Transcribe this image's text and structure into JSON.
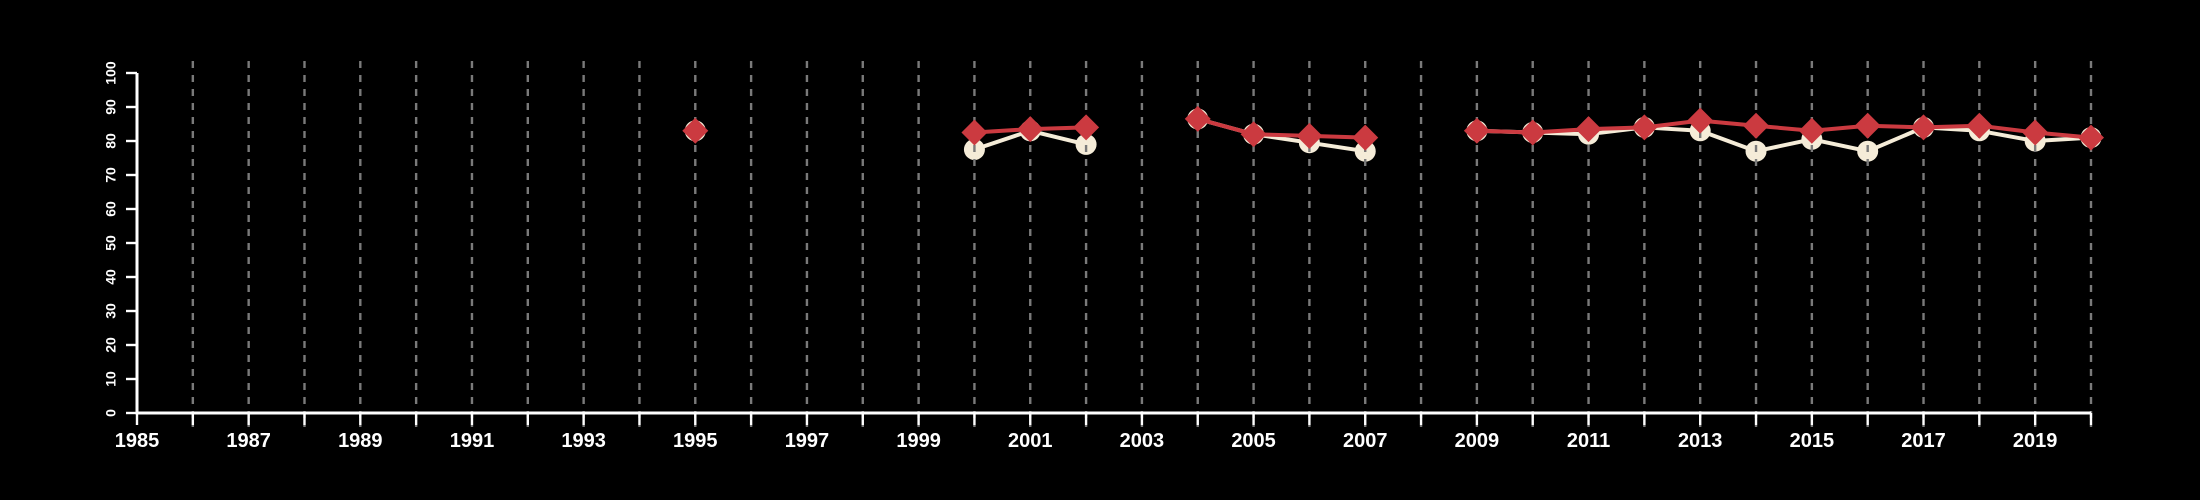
{
  "page": {
    "background_color": "#000000"
  },
  "chart_data": {
    "type": "line",
    "title": "",
    "xlabel": "",
    "ylabel": "",
    "xlim": [
      1985,
      2020
    ],
    "ylim": [
      0,
      100
    ],
    "grid": "vertical-dashed",
    "legend": null,
    "background_color": "#000000",
    "axis_color": "#ffffff",
    "gridline_color": "#7a7a7a",
    "y_ticks": [
      0,
      10,
      20,
      30,
      40,
      50,
      60,
      70,
      80,
      90,
      100
    ],
    "y_tick_labels": [
      "0",
      "10",
      "20",
      "30",
      "40",
      "50",
      "60",
      "70",
      "80",
      "90",
      "100"
    ],
    "x_ticks": [
      1985,
      1986,
      1987,
      1988,
      1989,
      1990,
      1991,
      1992,
      1993,
      1994,
      1995,
      1996,
      1997,
      1998,
      1999,
      2000,
      2001,
      2002,
      2003,
      2004,
      2005,
      2006,
      2007,
      2008,
      2009,
      2010,
      2011,
      2012,
      2013,
      2014,
      2015,
      2016,
      2017,
      2018,
      2019,
      2020
    ],
    "x_label_years": [
      1985,
      1987,
      1989,
      1991,
      1993,
      1995,
      1997,
      1999,
      2001,
      2003,
      2005,
      2007,
      2009,
      2011,
      2013,
      2015,
      2017,
      2019
    ],
    "gridline_years": [
      1986,
      1987,
      1988,
      1989,
      1990,
      1991,
      1992,
      1993,
      1994,
      1995,
      1996,
      1997,
      1998,
      1999,
      2000,
      2001,
      2002,
      2003,
      2004,
      2005,
      2006,
      2007,
      2008,
      2009,
      2010,
      2011,
      2012,
      2013,
      2014,
      2015,
      2016,
      2017,
      2018,
      2019,
      2020
    ],
    "series": [
      {
        "name": "circle-series",
        "marker": "circle",
        "color": "#f5ecd8",
        "points": [
          [
            1995,
            83
          ],
          [
            2000,
            77.5
          ],
          [
            2001,
            83
          ],
          [
            2002,
            79
          ],
          [
            2004,
            86.5
          ],
          [
            2005,
            82
          ],
          [
            2006,
            79.5
          ],
          [
            2007,
            77
          ],
          [
            2009,
            83
          ],
          [
            2010,
            82.5
          ],
          [
            2011,
            82
          ],
          [
            2012,
            84
          ],
          [
            2013,
            83
          ],
          [
            2014,
            77
          ],
          [
            2015,
            80.5
          ],
          [
            2016,
            77
          ],
          [
            2017,
            84
          ],
          [
            2018,
            83
          ],
          [
            2019,
            80
          ],
          [
            2020,
            81
          ]
        ]
      },
      {
        "name": "diamond-series",
        "marker": "diamond",
        "color": "#cb3a40",
        "points": [
          [
            1995,
            83
          ],
          [
            2000,
            82.5
          ],
          [
            2001,
            83.5
          ],
          [
            2002,
            84
          ],
          [
            2004,
            86.5
          ],
          [
            2005,
            82
          ],
          [
            2006,
            81.5
          ],
          [
            2007,
            81
          ],
          [
            2009,
            83
          ],
          [
            2010,
            82.5
          ],
          [
            2011,
            83.5
          ],
          [
            2012,
            84
          ],
          [
            2013,
            86
          ],
          [
            2014,
            84.5
          ],
          [
            2015,
            83
          ],
          [
            2016,
            84.5
          ],
          [
            2017,
            84
          ],
          [
            2018,
            84.5
          ],
          [
            2019,
            82.5
          ],
          [
            2020,
            81
          ]
        ]
      }
    ]
  }
}
